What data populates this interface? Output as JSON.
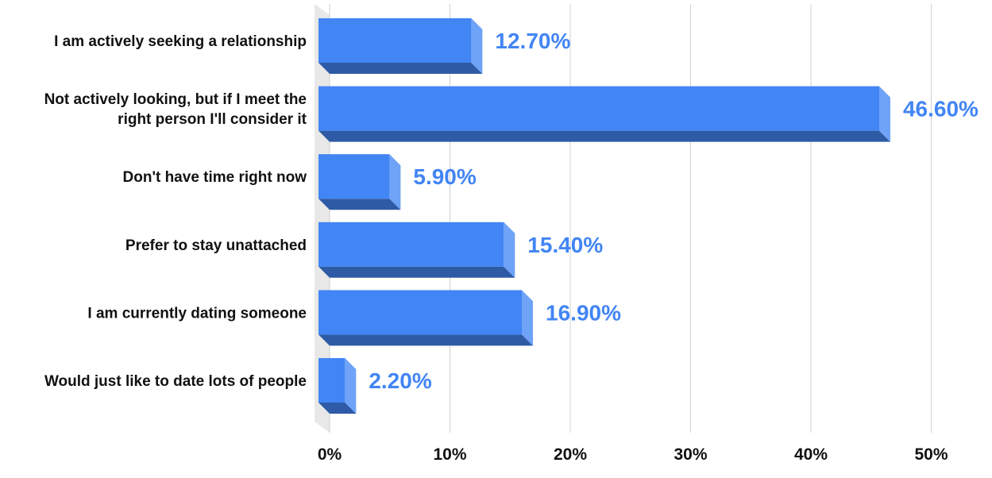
{
  "chart_data": {
    "type": "bar",
    "orientation": "horizontal",
    "style": "3d",
    "title": "",
    "xlabel": "",
    "ylabel": "",
    "categories": [
      [
        "I am actively seeking a relationship"
      ],
      [
        "Not actively looking, but if I meet the",
        "right person I'll consider it"
      ],
      [
        "Don't have time right now"
      ],
      [
        "Prefer to stay unattached"
      ],
      [
        "I am currently dating someone"
      ],
      [
        "Would just like to date lots of people"
      ]
    ],
    "values": [
      12.7,
      46.6,
      5.9,
      15.4,
      16.9,
      2.2
    ],
    "data_labels": [
      "12.70%",
      "46.60%",
      "5.90%",
      "15.40%",
      "16.90%",
      "2.20%"
    ],
    "xlim": [
      0,
      50
    ],
    "x_ticks": [
      "0%",
      "10%",
      "20%",
      "30%",
      "40%",
      "50%"
    ],
    "x_tick_values": [
      0,
      10,
      20,
      30,
      40,
      50
    ],
    "grid": true,
    "legend": "none",
    "colors": {
      "bar_front": "#4285f4",
      "bar_side": "#6fa3f7",
      "bar_bottom": "#2f5ba6",
      "floor": "#e8e8e8",
      "label": "#4285f4"
    }
  }
}
